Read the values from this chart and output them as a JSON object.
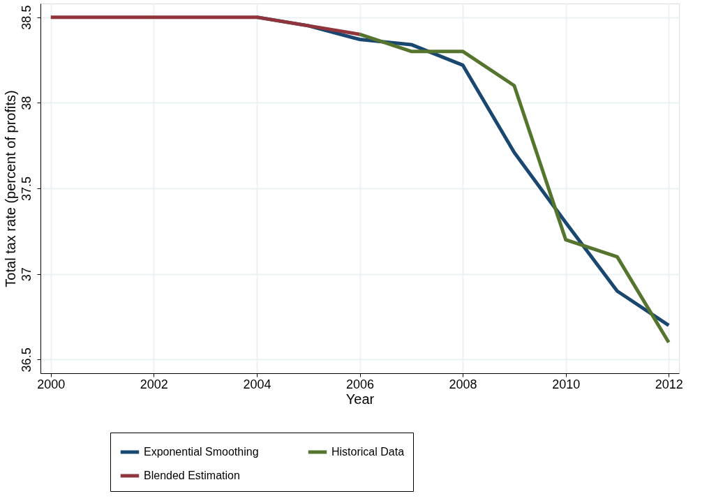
{
  "chart_data": {
    "type": "line",
    "xlabel": "Year",
    "ylabel": "Total tax rate (percent of profits)",
    "x": [
      2000,
      2001,
      2002,
      2003,
      2004,
      2005,
      2006,
      2007,
      2008,
      2009,
      2010,
      2011,
      2012
    ],
    "series": [
      {
        "name": "Exponential Smoothing",
        "color": "#1a476f",
        "values": [
          null,
          null,
          null,
          null,
          38.5,
          38.45,
          38.37,
          38.34,
          38.22,
          37.71,
          37.3,
          36.9,
          36.7
        ]
      },
      {
        "name": "Blended Estimation",
        "color": "#90353b",
        "values": [
          38.5,
          38.5,
          38.5,
          38.5,
          38.5,
          38.45,
          38.4,
          null,
          null,
          null,
          null,
          null,
          null
        ]
      },
      {
        "name": "Historical Data",
        "color": "#55752f",
        "values": [
          null,
          null,
          null,
          null,
          null,
          null,
          38.4,
          38.3,
          38.3,
          38.1,
          37.2,
          37.1,
          36.6
        ]
      }
    ],
    "xlim": [
      1999.8,
      2012.2
    ],
    "xticks": [
      2000,
      2002,
      2004,
      2006,
      2008,
      2010,
      2012
    ],
    "ylim": [
      36.42,
      38.58
    ],
    "yticks": [
      36.5,
      37,
      37.5,
      38,
      38.5
    ],
    "grid": true,
    "legend": "bottom",
    "marker": "none",
    "line_style": "solid"
  }
}
